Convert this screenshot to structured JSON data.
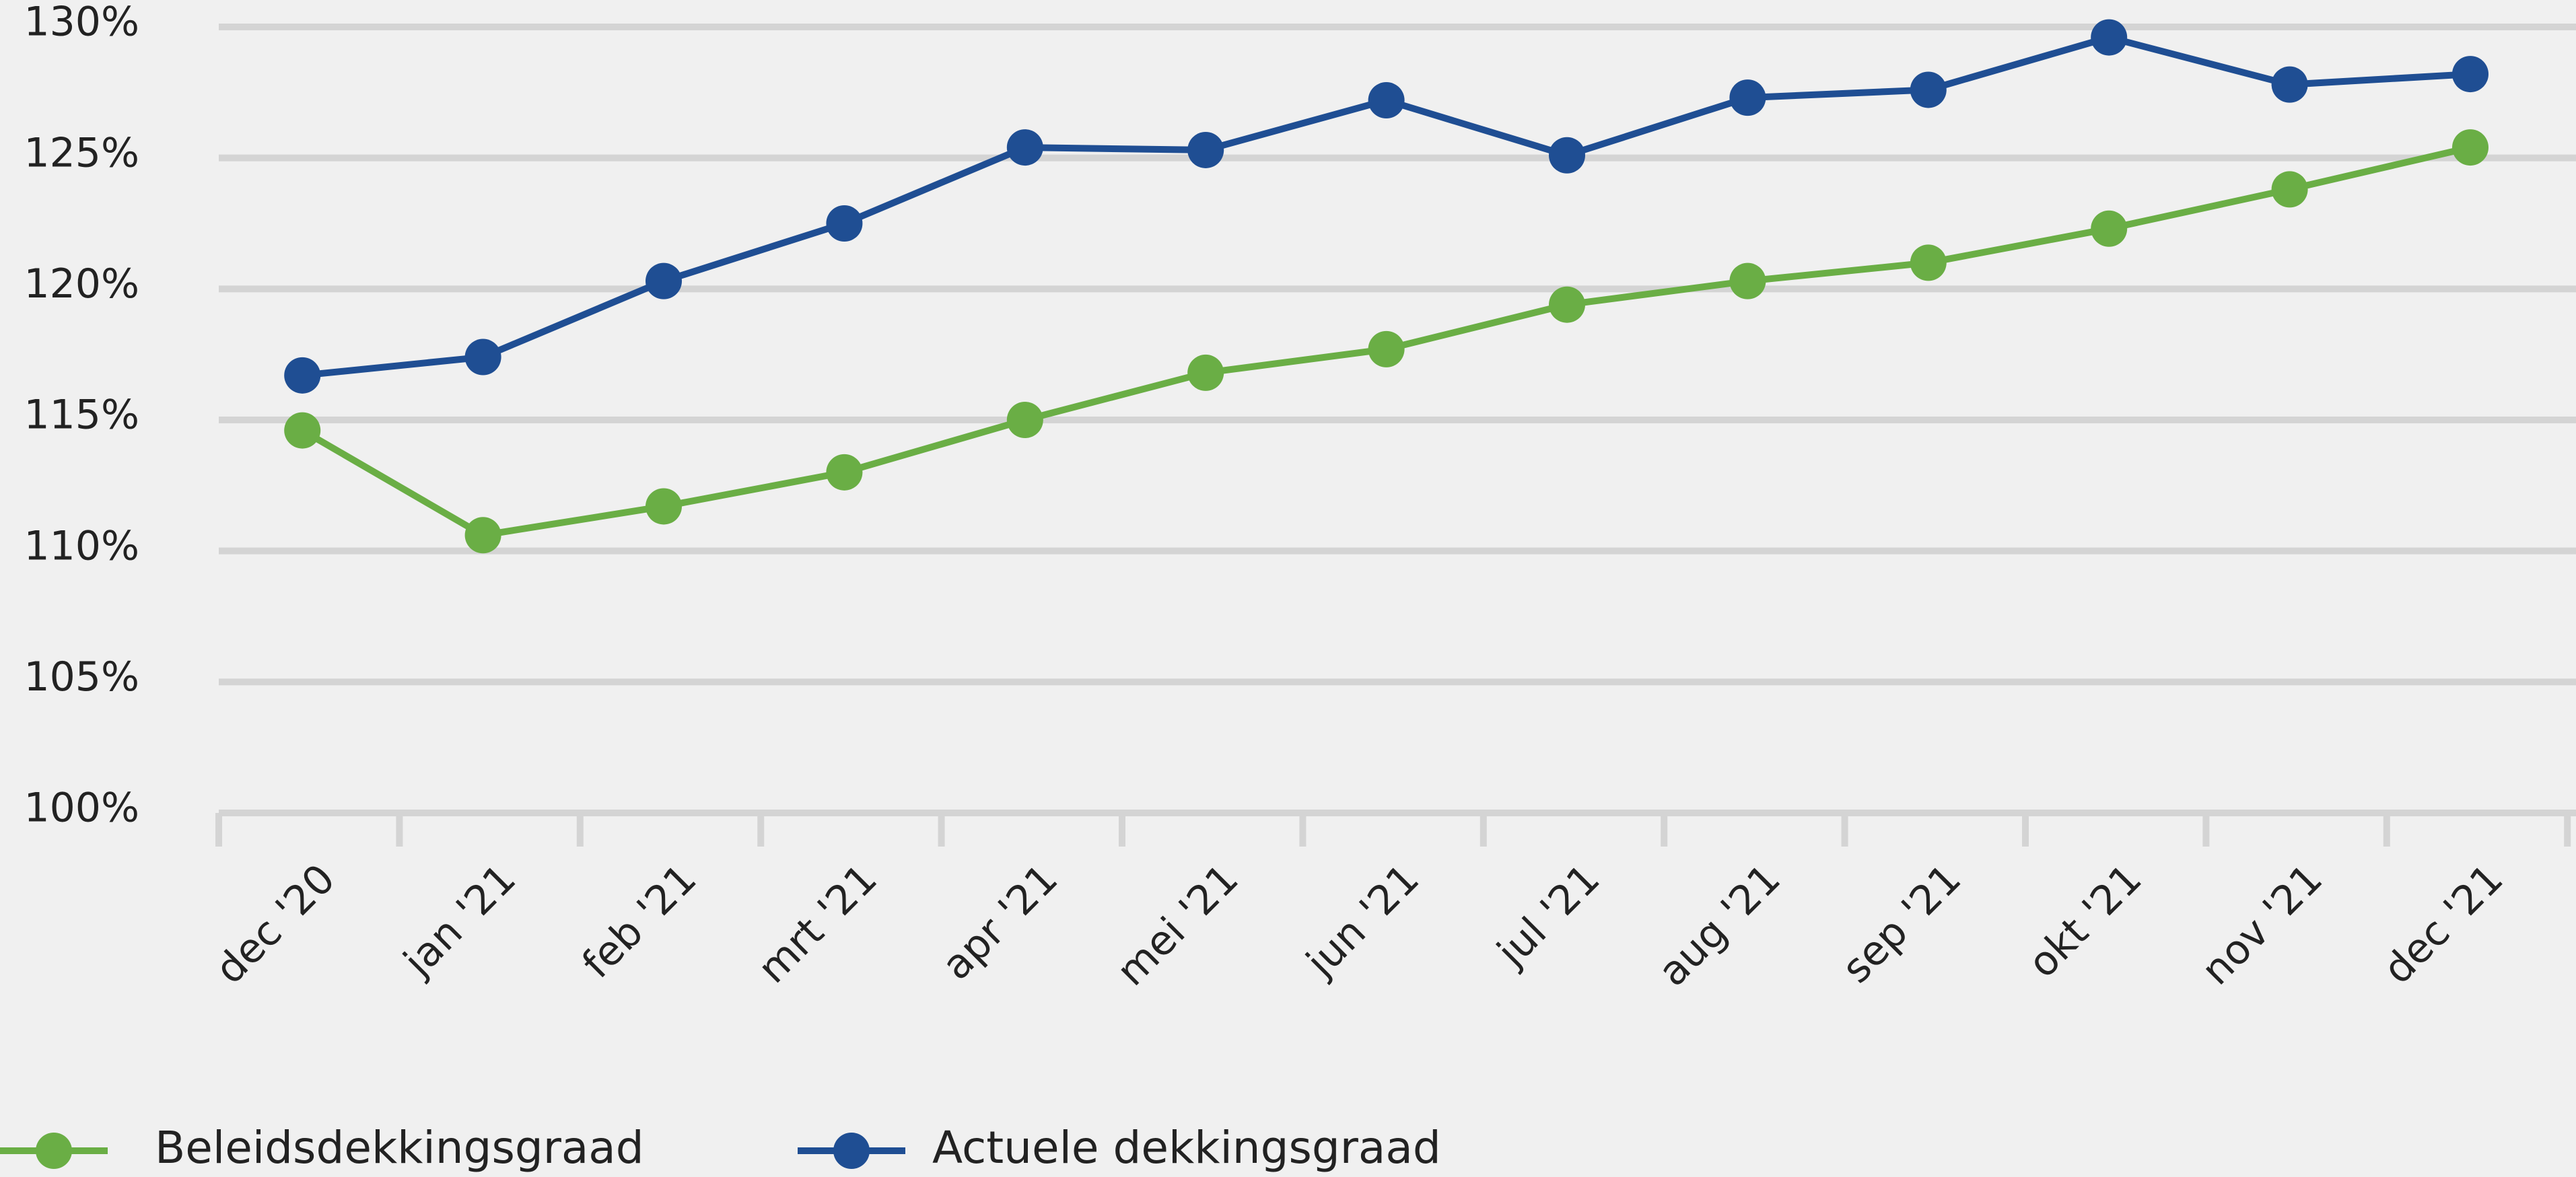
{
  "chart_data": {
    "type": "line",
    "categories": [
      "dec '20",
      "jan '21",
      "feb '21",
      "mrt '21",
      "apr '21",
      "mei '21",
      "jun '21",
      "jul '21",
      "aug '21",
      "sep '21",
      "okt '21",
      "nov '21",
      "dec '21"
    ],
    "series": [
      {
        "name": "Beleidsdekkingsgraad",
        "color": "#6aae45",
        "values": [
          114.6,
          110.6,
          111.7,
          113.0,
          115.0,
          116.8,
          117.7,
          119.4,
          120.3,
          121.0,
          122.3,
          123.8,
          125.4
        ]
      },
      {
        "name": "Actuele dekkingsgraad",
        "color": "#1f4e93",
        "values": [
          116.7,
          117.4,
          120.3,
          122.5,
          125.4,
          125.3,
          127.2,
          125.1,
          127.3,
          127.6,
          129.6,
          127.8,
          128.2
        ]
      }
    ],
    "ylim": [
      100,
      130
    ],
    "yticks": [
      {
        "value": 100,
        "label": "100%"
      },
      {
        "value": 105,
        "label": "105%"
      },
      {
        "value": 110,
        "label": "110%"
      },
      {
        "value": 115,
        "label": "115%"
      },
      {
        "value": 120,
        "label": "120%"
      },
      {
        "value": 125,
        "label": "125%"
      },
      {
        "value": 130,
        "label": "130%"
      }
    ],
    "grid": true
  }
}
